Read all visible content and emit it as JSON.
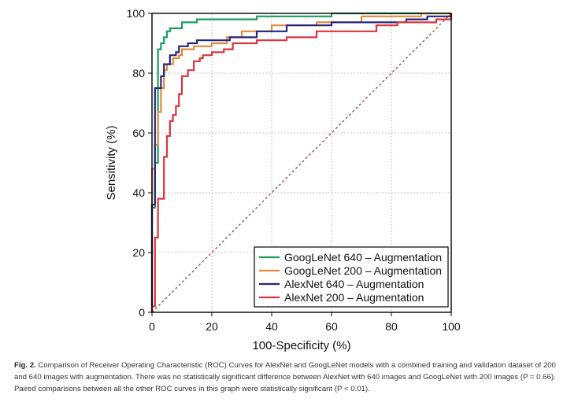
{
  "chart_data": {
    "type": "line",
    "xlabel": "100-Specificity (%)",
    "ylabel": "Sensitivity (%)",
    "xlim": [
      0,
      100
    ],
    "ylim": [
      0,
      100
    ],
    "xticks": [
      "0",
      "20",
      "40",
      "60",
      "80",
      "100"
    ],
    "yticks": [
      "0",
      "20",
      "40",
      "60",
      "80",
      "100"
    ],
    "grid": true,
    "legend_position": "bottom-right",
    "colors": {
      "googlenet640": "#1a9e5c",
      "googlenet200": "#e08a3c",
      "alexnet640": "#23277a",
      "alexnet200": "#d9363e",
      "diagonal": "#8b3a1e"
    },
    "series": [
      {
        "key": "googlenet640",
        "name": "GoogLeNet 640 – Augmentation",
        "points": [
          [
            0,
            0
          ],
          [
            0,
            35
          ],
          [
            1,
            35
          ],
          [
            1,
            50
          ],
          [
            2,
            50
          ],
          [
            2,
            88
          ],
          [
            3,
            88
          ],
          [
            3,
            90
          ],
          [
            4,
            90
          ],
          [
            4,
            92
          ],
          [
            5,
            92
          ],
          [
            5,
            94
          ],
          [
            6,
            94
          ],
          [
            6,
            95
          ],
          [
            10,
            95
          ],
          [
            10,
            97
          ],
          [
            15,
            97
          ],
          [
            15,
            98
          ],
          [
            35,
            98
          ],
          [
            35,
            99
          ],
          [
            60,
            99
          ],
          [
            60,
            100
          ],
          [
            100,
            100
          ]
        ]
      },
      {
        "key": "googlenet200",
        "name": "GoogLeNet 200 – Augmentation",
        "points": [
          [
            0,
            0
          ],
          [
            0,
            48
          ],
          [
            1,
            48
          ],
          [
            1,
            56
          ],
          [
            2,
            56
          ],
          [
            2,
            67
          ],
          [
            3,
            67
          ],
          [
            3,
            75
          ],
          [
            4,
            75
          ],
          [
            4,
            81
          ],
          [
            5,
            81
          ],
          [
            5,
            83
          ],
          [
            7,
            83
          ],
          [
            7,
            85
          ],
          [
            9,
            85
          ],
          [
            9,
            86
          ],
          [
            10,
            86
          ],
          [
            10,
            88
          ],
          [
            14,
            88
          ],
          [
            14,
            89
          ],
          [
            20,
            89
          ],
          [
            20,
            90
          ],
          [
            25,
            90
          ],
          [
            25,
            92
          ],
          [
            30,
            92
          ],
          [
            30,
            94
          ],
          [
            40,
            94
          ],
          [
            40,
            96
          ],
          [
            55,
            96
          ],
          [
            55,
            97
          ],
          [
            70,
            97
          ],
          [
            70,
            99
          ],
          [
            90,
            99
          ],
          [
            90,
            100
          ],
          [
            100,
            100
          ]
        ]
      },
      {
        "key": "alexnet640",
        "name": "AlexNet 640 – Augmentation",
        "points": [
          [
            0,
            0
          ],
          [
            0,
            36
          ],
          [
            1,
            36
          ],
          [
            1,
            75
          ],
          [
            3,
            75
          ],
          [
            3,
            79
          ],
          [
            4,
            79
          ],
          [
            4,
            83
          ],
          [
            6,
            83
          ],
          [
            6,
            86
          ],
          [
            8,
            86
          ],
          [
            8,
            87
          ],
          [
            9,
            87
          ],
          [
            9,
            89
          ],
          [
            12,
            89
          ],
          [
            12,
            90
          ],
          [
            15,
            90
          ],
          [
            15,
            91
          ],
          [
            26,
            91
          ],
          [
            26,
            92
          ],
          [
            35,
            92
          ],
          [
            35,
            94
          ],
          [
            45,
            94
          ],
          [
            45,
            96
          ],
          [
            60,
            96
          ],
          [
            60,
            97
          ],
          [
            85,
            97
          ],
          [
            85,
            98
          ],
          [
            92,
            98
          ],
          [
            92,
            99
          ],
          [
            100,
            99
          ],
          [
            100,
            100
          ]
        ]
      },
      {
        "key": "alexnet200",
        "name": "AlexNet 200 – Augmentation",
        "points": [
          [
            0,
            0
          ],
          [
            0,
            2
          ],
          [
            1,
            2
          ],
          [
            1,
            25
          ],
          [
            2,
            25
          ],
          [
            2,
            38
          ],
          [
            4,
            38
          ],
          [
            4,
            52
          ],
          [
            5,
            52
          ],
          [
            5,
            59
          ],
          [
            6,
            59
          ],
          [
            6,
            64
          ],
          [
            7,
            64
          ],
          [
            7,
            66
          ],
          [
            8,
            66
          ],
          [
            8,
            69
          ],
          [
            9,
            69
          ],
          [
            9,
            73
          ],
          [
            10,
            73
          ],
          [
            10,
            79
          ],
          [
            12,
            79
          ],
          [
            12,
            81
          ],
          [
            14,
            81
          ],
          [
            14,
            84
          ],
          [
            16,
            84
          ],
          [
            16,
            85
          ],
          [
            17,
            85
          ],
          [
            17,
            86
          ],
          [
            20,
            86
          ],
          [
            20,
            87
          ],
          [
            24,
            87
          ],
          [
            24,
            88
          ],
          [
            27,
            88
          ],
          [
            27,
            90
          ],
          [
            35,
            90
          ],
          [
            35,
            91
          ],
          [
            45,
            91
          ],
          [
            45,
            92
          ],
          [
            55,
            92
          ],
          [
            55,
            94
          ],
          [
            75,
            94
          ],
          [
            75,
            96
          ],
          [
            82,
            96
          ],
          [
            82,
            97
          ],
          [
            95,
            97
          ],
          [
            95,
            98
          ],
          [
            100,
            98
          ],
          [
            100,
            100
          ]
        ]
      }
    ]
  },
  "caption": {
    "label": "Fig. 2.",
    "text": "Comparison of Receiver Operating Characteristic (ROC) Curves for AlexNet and GoogLeNet models with a combined training and validation dataset of 200 and 640 images with augmentation. There was no statistically significant difference between AlexNet with 640 images and GoogLeNet with 200 images (P = 0.66). Paired comparisons between all the other ROC curves in this graph were statistically significant (P < 0.01)."
  }
}
